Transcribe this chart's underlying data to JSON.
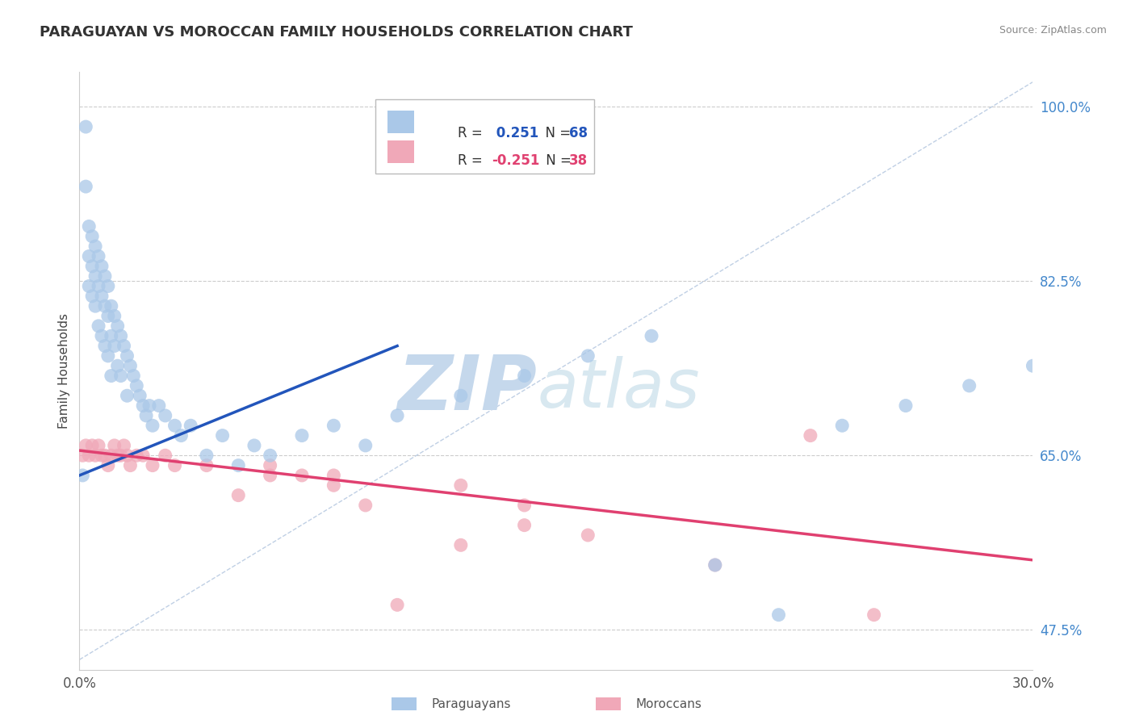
{
  "title": "PARAGUAYAN VS MOROCCAN FAMILY HOUSEHOLDS CORRELATION CHART",
  "source_text": "Source: ZipAtlas.com",
  "ylabel": "Family Households",
  "xlim": [
    0.0,
    0.3
  ],
  "ylim": [
    0.435,
    1.035
  ],
  "xtick_positions": [
    0.0,
    0.3
  ],
  "xticklabels": [
    "0.0%",
    "30.0%"
  ],
  "yticks_right": [
    1.0,
    0.825,
    0.65,
    0.475
  ],
  "ytick_right_labels": [
    "100.0%",
    "82.5%",
    "65.0%",
    "47.5%"
  ],
  "blue_color": "#aac8e8",
  "blue_line_color": "#2255bb",
  "pink_color": "#f0a8b8",
  "pink_line_color": "#e04070",
  "watermark_zip": "ZIP",
  "watermark_atlas": "atlas",
  "watermark_color": "#c5d8ec",
  "grid_color": "#cccccc",
  "background_color": "#ffffff",
  "blue_scatter_x": [
    0.001,
    0.002,
    0.002,
    0.003,
    0.003,
    0.003,
    0.004,
    0.004,
    0.004,
    0.005,
    0.005,
    0.005,
    0.006,
    0.006,
    0.006,
    0.007,
    0.007,
    0.007,
    0.008,
    0.008,
    0.008,
    0.009,
    0.009,
    0.009,
    0.01,
    0.01,
    0.01,
    0.011,
    0.011,
    0.012,
    0.012,
    0.013,
    0.013,
    0.014,
    0.015,
    0.015,
    0.016,
    0.017,
    0.018,
    0.019,
    0.02,
    0.021,
    0.022,
    0.023,
    0.025,
    0.027,
    0.03,
    0.032,
    0.035,
    0.04,
    0.045,
    0.05,
    0.055,
    0.06,
    0.07,
    0.08,
    0.09,
    0.1,
    0.12,
    0.14,
    0.16,
    0.18,
    0.2,
    0.22,
    0.24,
    0.26,
    0.28,
    0.3
  ],
  "blue_scatter_y": [
    0.63,
    0.98,
    0.92,
    0.88,
    0.85,
    0.82,
    0.87,
    0.84,
    0.81,
    0.86,
    0.83,
    0.8,
    0.85,
    0.82,
    0.78,
    0.84,
    0.81,
    0.77,
    0.83,
    0.8,
    0.76,
    0.82,
    0.79,
    0.75,
    0.8,
    0.77,
    0.73,
    0.79,
    0.76,
    0.78,
    0.74,
    0.77,
    0.73,
    0.76,
    0.75,
    0.71,
    0.74,
    0.73,
    0.72,
    0.71,
    0.7,
    0.69,
    0.7,
    0.68,
    0.7,
    0.69,
    0.68,
    0.67,
    0.68,
    0.65,
    0.67,
    0.64,
    0.66,
    0.65,
    0.67,
    0.68,
    0.66,
    0.69,
    0.71,
    0.73,
    0.75,
    0.77,
    0.54,
    0.49,
    0.68,
    0.7,
    0.72,
    0.74
  ],
  "pink_scatter_x": [
    0.001,
    0.002,
    0.003,
    0.004,
    0.005,
    0.006,
    0.007,
    0.008,
    0.009,
    0.01,
    0.011,
    0.012,
    0.013,
    0.014,
    0.015,
    0.016,
    0.018,
    0.02,
    0.023,
    0.027,
    0.03,
    0.04,
    0.05,
    0.06,
    0.08,
    0.1,
    0.12,
    0.14,
    0.16,
    0.2,
    0.23,
    0.25,
    0.12,
    0.14,
    0.06,
    0.07,
    0.08,
    0.09
  ],
  "pink_scatter_y": [
    0.65,
    0.66,
    0.65,
    0.66,
    0.65,
    0.66,
    0.65,
    0.65,
    0.64,
    0.65,
    0.66,
    0.65,
    0.65,
    0.66,
    0.65,
    0.64,
    0.65,
    0.65,
    0.64,
    0.65,
    0.64,
    0.64,
    0.61,
    0.63,
    0.63,
    0.5,
    0.62,
    0.6,
    0.57,
    0.54,
    0.67,
    0.49,
    0.56,
    0.58,
    0.64,
    0.63,
    0.62,
    0.6
  ],
  "blue_line_x0": 0.0,
  "blue_line_x1": 0.1,
  "blue_line_y0": 0.63,
  "blue_line_y1": 0.76,
  "pink_line_x0": 0.0,
  "pink_line_x1": 0.3,
  "pink_line_y0": 0.655,
  "pink_line_y1": 0.545
}
